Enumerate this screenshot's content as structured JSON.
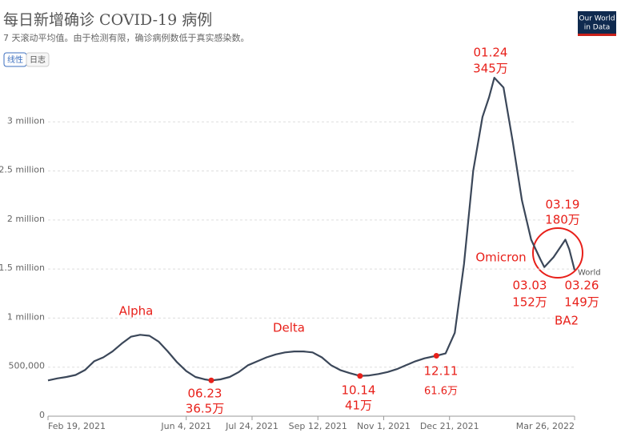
{
  "chart_data": {
    "type": "line",
    "title": "每日新增确诊 COVID-19 病例",
    "subtitle": "7 天滚动平均值。由于检测有限，确诊病例数低于真实感染数。",
    "controls": [
      "线性",
      "日志"
    ],
    "logo": [
      "Our World",
      "in Data"
    ],
    "x": [
      "2021-02-19",
      "2021-02-26",
      "2021-03-05",
      "2021-03-12",
      "2021-03-19",
      "2021-03-26",
      "2021-04-02",
      "2021-04-09",
      "2021-04-16",
      "2021-04-23",
      "2021-04-30",
      "2021-05-07",
      "2021-05-14",
      "2021-05-21",
      "2021-05-28",
      "2021-06-04",
      "2021-06-11",
      "2021-06-18",
      "2021-06-23",
      "2021-06-30",
      "2021-07-07",
      "2021-07-14",
      "2021-07-21",
      "2021-07-28",
      "2021-08-04",
      "2021-08-11",
      "2021-08-18",
      "2021-08-25",
      "2021-09-01",
      "2021-09-08",
      "2021-09-15",
      "2021-09-22",
      "2021-09-29",
      "2021-10-06",
      "2021-10-14",
      "2021-10-21",
      "2021-10-28",
      "2021-11-04",
      "2021-11-11",
      "2021-11-18",
      "2021-11-25",
      "2021-12-02",
      "2021-12-11",
      "2021-12-18",
      "2021-12-25",
      "2022-01-01",
      "2022-01-08",
      "2022-01-15",
      "2022-01-20",
      "2022-01-24",
      "2022-01-31",
      "2022-02-07",
      "2022-02-14",
      "2022-02-21",
      "2022-02-28",
      "2022-03-03",
      "2022-03-10",
      "2022-03-15",
      "2022-03-19",
      "2022-03-22",
      "2022-03-26"
    ],
    "series": [
      {
        "name": "World",
        "color": "#3b4759",
        "values": [
          365000,
          385000,
          400000,
          420000,
          470000,
          560000,
          600000,
          660000,
          740000,
          810000,
          830000,
          820000,
          760000,
          660000,
          550000,
          460000,
          400000,
          375000,
          365000,
          375000,
          400000,
          450000,
          520000,
          560000,
          600000,
          630000,
          650000,
          660000,
          660000,
          650000,
          600000,
          520000,
          470000,
          440000,
          410000,
          415000,
          430000,
          450000,
          480000,
          520000,
          560000,
          590000,
          616000,
          640000,
          850000,
          1550000,
          2500000,
          3050000,
          3250000,
          3450000,
          3350000,
          2800000,
          2200000,
          1800000,
          1600000,
          1520000,
          1620000,
          1720000,
          1800000,
          1700000,
          1490000
        ]
      }
    ],
    "xlim": [
      "2021-02-19",
      "2022-03-26"
    ],
    "xticks": [
      {
        "value": "2021-02-19",
        "label": "Feb 19, 2021"
      },
      {
        "value": "2021-06-04",
        "label": "Jun 4, 2021"
      },
      {
        "value": "2021-07-24",
        "label": "Jul 24, 2021"
      },
      {
        "value": "2021-09-12",
        "label": "Sep 12, 2021"
      },
      {
        "value": "2021-11-01",
        "label": "Nov 1, 2021"
      },
      {
        "value": "2021-12-21",
        "label": "Dec 21, 2021"
      },
      {
        "value": "2022-03-26",
        "label": "Mar 26, 2022"
      }
    ],
    "ylim": [
      0,
      3500000
    ],
    "yticks": [
      0,
      {
        "value": 500000,
        "label": "500,000"
      },
      {
        "value": 1000000,
        "label": "1 million"
      },
      {
        "value": 1500000,
        "label": "1.5 million"
      },
      {
        "value": 2000000,
        "label": "2 million"
      },
      {
        "value": 2500000,
        "label": "2.5 million"
      },
      {
        "value": 3000000,
        "label": "3 million"
      }
    ],
    "grid": true,
    "annotations": [
      "Alpha",
      "Delta",
      "Omicron",
      "BA2"
    ],
    "callouts": [
      {
        "x": "2021-06-23",
        "value": 365000,
        "labels": [
          "06.23",
          "36.5万"
        ],
        "marker": true
      },
      {
        "x": "2021-10-14",
        "value": 410000,
        "labels": [
          "10.14",
          "41万"
        ],
        "marker": true
      },
      {
        "x": "2021-12-11",
        "value": 616000,
        "labels": [
          "12.11",
          "61.6万"
        ],
        "marker": true
      },
      {
        "x": "2022-01-24",
        "value": 3450000,
        "labels": [
          "01.24",
          "345万"
        ],
        "marker": false
      },
      {
        "x": "2022-03-19",
        "value": 1800000,
        "labels": [
          "03.19",
          "180万"
        ],
        "marker": false
      },
      {
        "x": "2022-03-03",
        "value": 1520000,
        "labels": [
          "03.03",
          "152万"
        ],
        "marker": false
      },
      {
        "x": "2022-03-26",
        "value": 1490000,
        "labels": [
          "03.26",
          "149万"
        ],
        "marker": false
      }
    ],
    "marker_color": "#e8201a"
  }
}
